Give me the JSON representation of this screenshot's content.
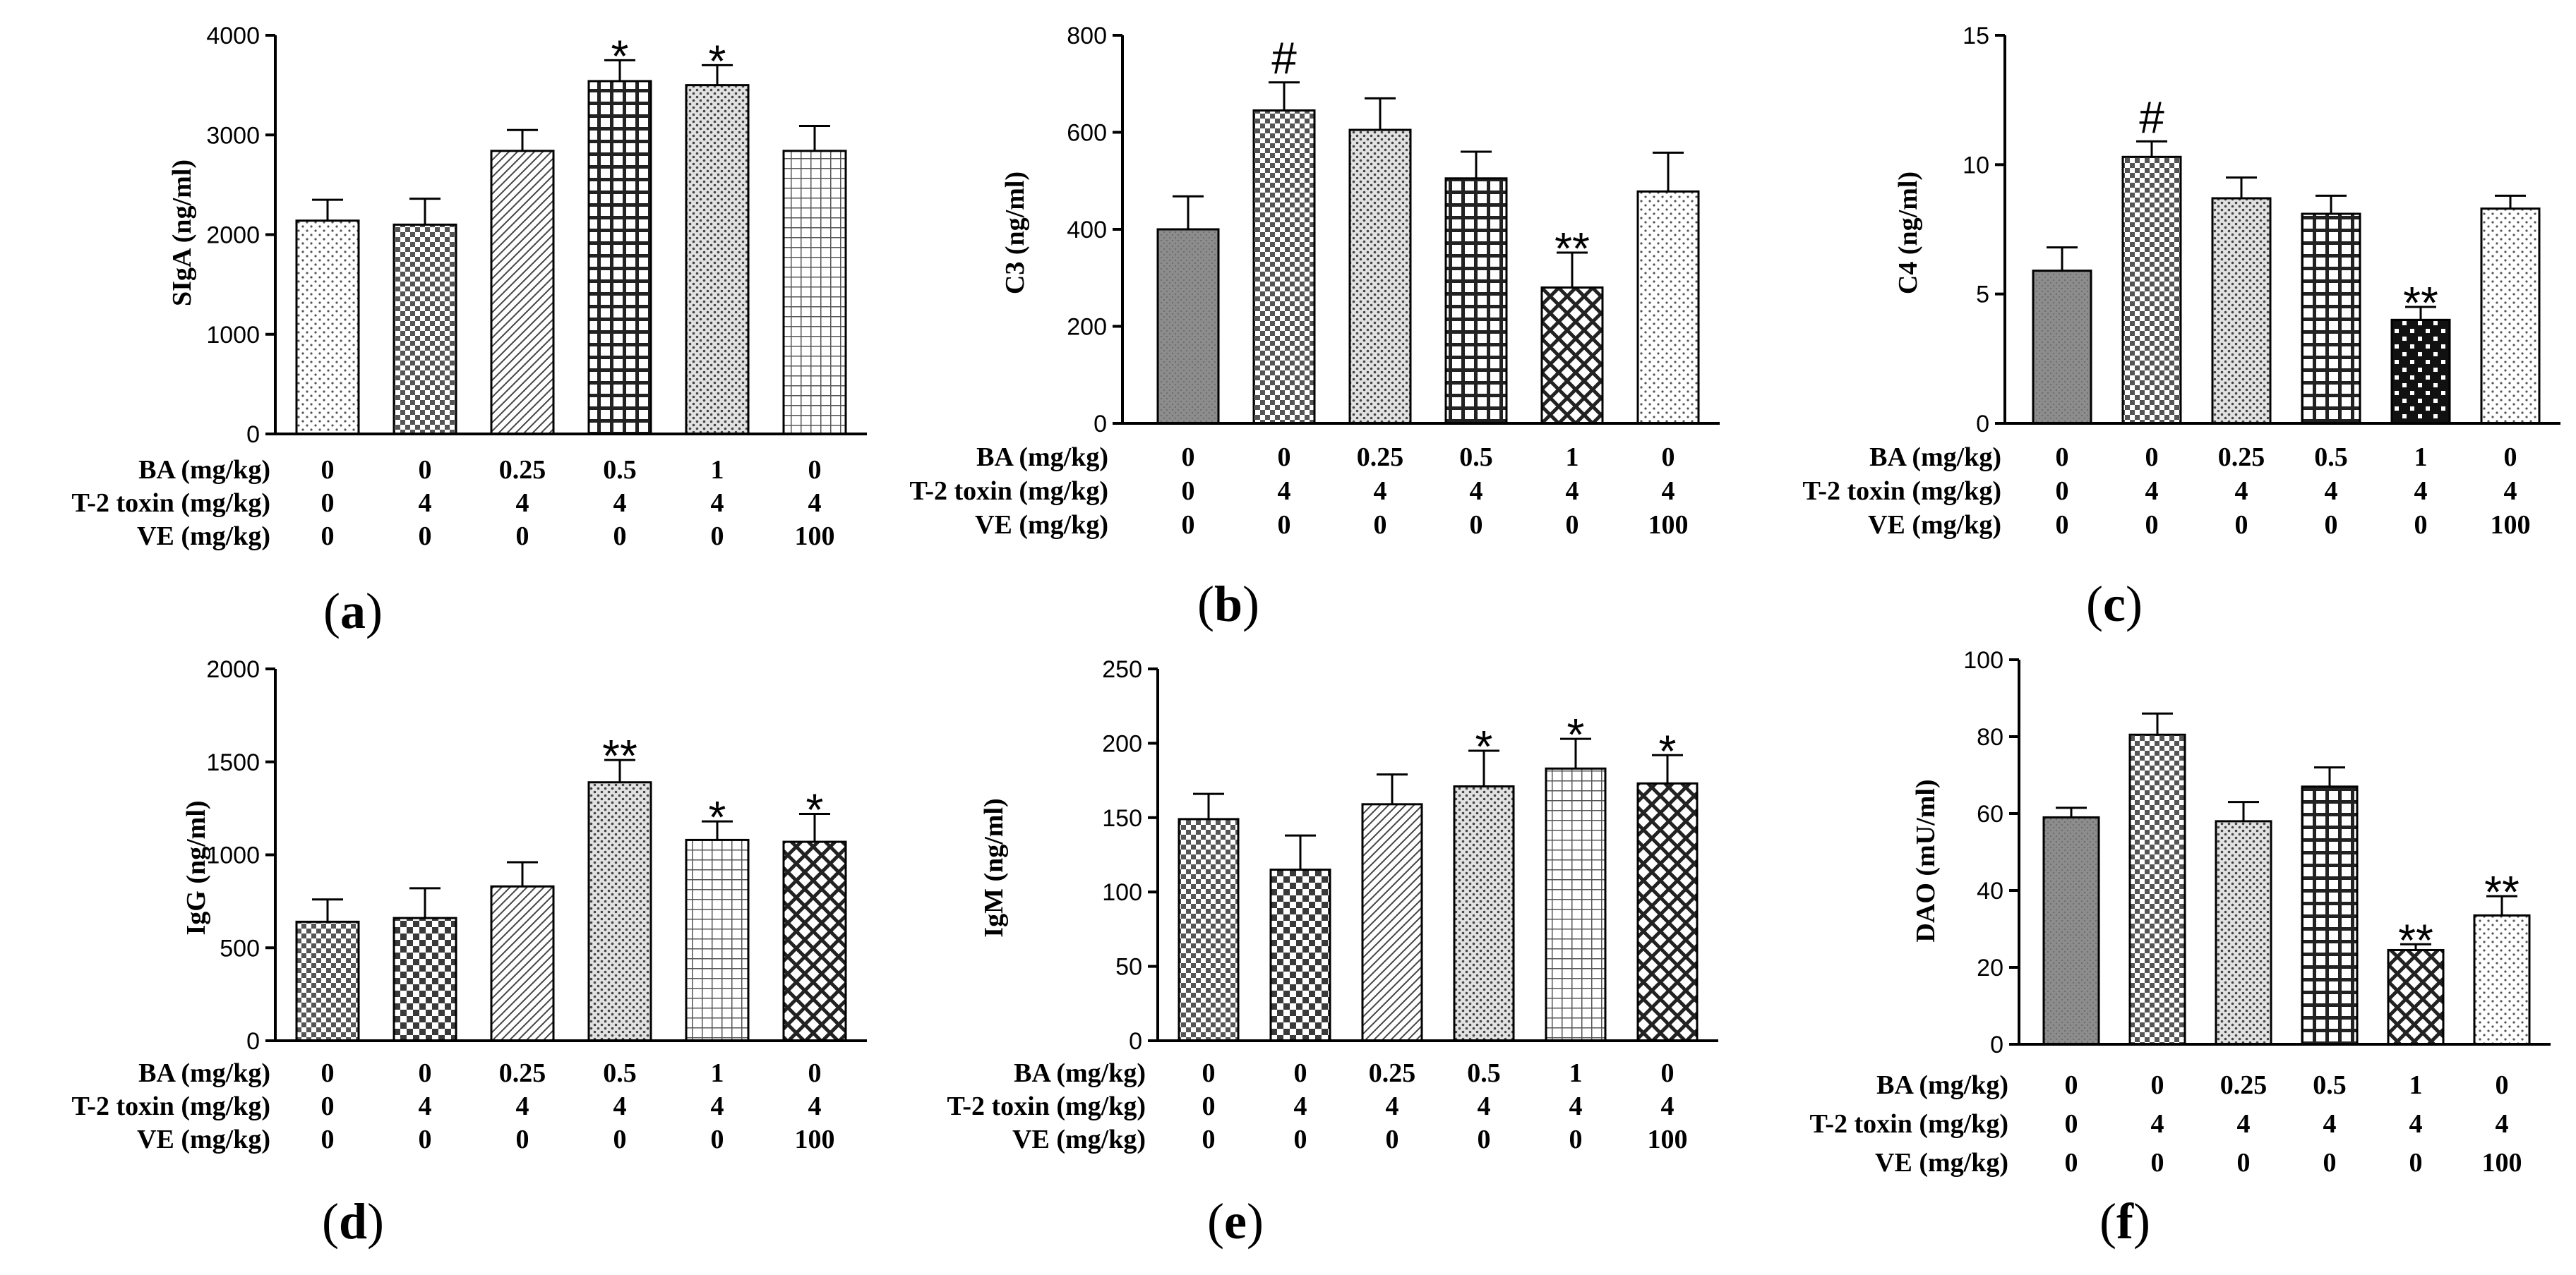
{
  "figure": {
    "row_labels": [
      "BA (mg/kg)",
      "T-2 toxin (mg/kg)",
      "VE (mg/kg)"
    ],
    "row_values": [
      [
        "0",
        "0",
        "0.25",
        "0.5",
        "1",
        "0"
      ],
      [
        "0",
        "4",
        "4",
        "4",
        "4",
        "4"
      ],
      [
        "0",
        "0",
        "0",
        "0",
        "0",
        "100"
      ]
    ]
  },
  "chart_data": [
    {
      "type": "bar",
      "panel": "a",
      "ylabel": "SIgA (ng/ml)",
      "ylim": [
        0,
        4000
      ],
      "yticks": [
        "0",
        "1000",
        "2000",
        "3000",
        "4000"
      ],
      "values": [
        2140,
        2100,
        2840,
        3540,
        3500,
        2840
      ],
      "errors": [
        210,
        260,
        210,
        210,
        200,
        250
      ],
      "annotations": [
        "",
        "",
        "",
        "*",
        "*",
        ""
      ],
      "patterns": [
        "dots-light",
        "checker-fine",
        "diag-light",
        "grid-heavy",
        "dots-med",
        "grid-light"
      ],
      "panel_label": "a"
    },
    {
      "type": "bar",
      "panel": "b",
      "ylabel": "C3 (ng/ml)",
      "ylim": [
        0,
        800
      ],
      "yticks": [
        "0",
        "200",
        "400",
        "600",
        "800"
      ],
      "values": [
        400,
        645,
        605,
        505,
        280,
        478
      ],
      "errors": [
        68,
        58,
        65,
        55,
        72,
        80
      ],
      "annotations": [
        "",
        "#",
        "",
        "",
        "**",
        ""
      ],
      "patterns": [
        "solid-gray",
        "checker-fine",
        "dots-med",
        "grid-heavy",
        "checker-bold",
        "dots-light"
      ],
      "panel_label": "b"
    },
    {
      "type": "bar",
      "panel": "c",
      "ylabel": "C4 (ng/ml)",
      "ylim": [
        0,
        15
      ],
      "yticks": [
        "0",
        "5",
        "10",
        "15"
      ],
      "values": [
        5.9,
        10.3,
        8.7,
        8.1,
        4.0,
        8.3
      ],
      "errors": [
        0.9,
        0.6,
        0.8,
        0.7,
        0.5,
        0.5
      ],
      "annotations": [
        "",
        "#",
        "",
        "",
        "**",
        ""
      ],
      "patterns": [
        "solid-gray",
        "checker-fine",
        "dots-med",
        "grid-heavy",
        "checker-heavy",
        "dots-light"
      ],
      "panel_label": "c"
    },
    {
      "type": "bar",
      "panel": "d",
      "ylabel": "IgG (ng/ml)",
      "ylim": [
        0,
        2000
      ],
      "yticks": [
        "0",
        "500",
        "1000",
        "1500",
        "2000"
      ],
      "values": [
        640,
        660,
        830,
        1390,
        1080,
        1070
      ],
      "errors": [
        120,
        160,
        130,
        120,
        100,
        150
      ],
      "annotations": [
        "",
        "",
        "",
        "**",
        "*",
        "*"
      ],
      "patterns": [
        "checker-fine",
        "checker-med",
        "diag-light",
        "dots-med",
        "grid-light",
        "checker-bold"
      ],
      "panel_label": "d"
    },
    {
      "type": "bar",
      "panel": "e",
      "ylabel": "IgM (ng/ml)",
      "ylim": [
        0,
        250
      ],
      "yticks": [
        "0",
        "50",
        "100",
        "150",
        "200",
        "250"
      ],
      "values": [
        149,
        115,
        159,
        171,
        183,
        173
      ],
      "errors": [
        17,
        23,
        20,
        24,
        20,
        19
      ],
      "annotations": [
        "",
        "",
        "",
        "*",
        "*",
        "*"
      ],
      "patterns": [
        "checker-fine",
        "checker-med",
        "diag-light",
        "dots-med",
        "grid-light",
        "checker-bold"
      ],
      "panel_label": "e"
    },
    {
      "type": "bar",
      "panel": "f",
      "ylabel": "DAO (mU/ml)",
      "ylim": [
        0,
        100
      ],
      "yticks": [
        "0",
        "20",
        "40",
        "60",
        "80",
        "100"
      ],
      "values": [
        59,
        80.5,
        58,
        67,
        24.5,
        33.5
      ],
      "errors": [
        2.5,
        5.5,
        5,
        5,
        1.5,
        5
      ],
      "annotations": [
        "",
        "",
        "",
        "",
        "**",
        "**"
      ],
      "patterns": [
        "solid-gray",
        "checker-fine",
        "dots-med",
        "grid-heavy",
        "checker-bold",
        "dots-light"
      ],
      "panel_label": "f"
    }
  ]
}
